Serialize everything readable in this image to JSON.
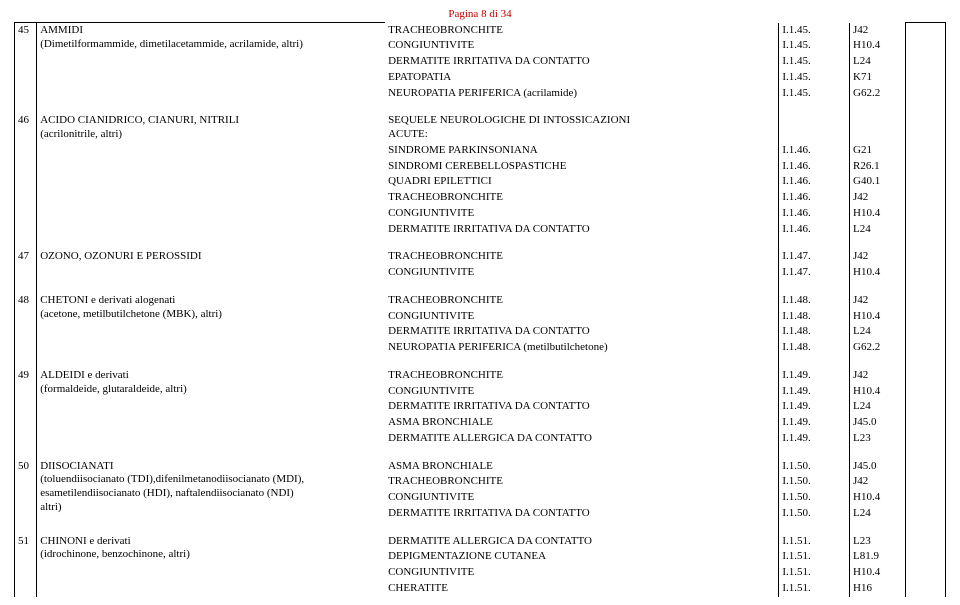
{
  "pageHeader": "Pagina 8 di 34",
  "groups": [
    {
      "num": "45",
      "left": "AMMIDI\n(Dimetilformammide, dimetilacetammide, acrilamide, altri)",
      "rows": [
        {
          "cond": "TRACHEOBRONCHITE",
          "c1": "I.1.45.",
          "c2": "J42"
        },
        {
          "cond": "CONGIUNTIVITE",
          "c1": "I.1.45.",
          "c2": "H10.4"
        },
        {
          "cond": "DERMATITE IRRITATIVA DA CONTATTO",
          "c1": "I.1.45.",
          "c2": "L24"
        },
        {
          "cond": "EPATOPATIA",
          "c1": "I.1.45.",
          "c2": "K71"
        },
        {
          "cond": "NEUROPATIA PERIFERICA (acrilamide)",
          "c1": "I.1.45.",
          "c2": "G62.2"
        }
      ]
    },
    {
      "num": "46",
      "left": "ACIDO CIANIDRICO, CIANURI, NITRILI\n(acrilonitrile, altri)",
      "rows": [
        {
          "cond": "SEQUELE NEUROLOGICHE DI INTOSSICAZIONI\nACUTE:",
          "c1": "",
          "c2": ""
        },
        {
          "cond": "SINDROME PARKINSONIANA",
          "c1": "I.1.46.",
          "c2": "G21"
        },
        {
          "cond": "SINDROMI CEREBELLOSPASTICHE",
          "c1": "I.1.46.",
          "c2": "R26.1"
        },
        {
          "cond": "QUADRI EPILETTICI",
          "c1": "I.1.46.",
          "c2": "G40.1"
        },
        {
          "cond": "TRACHEOBRONCHITE",
          "c1": "I.1.46.",
          "c2": "J42"
        },
        {
          "cond": "CONGIUNTIVITE",
          "c1": "I.1.46.",
          "c2": "H10.4"
        },
        {
          "cond": "DERMATITE IRRITATIVA DA CONTATTO",
          "c1": "I.1.46.",
          "c2": "L24"
        }
      ]
    },
    {
      "num": "47",
      "left": "OZONO, OZONURI E PEROSSIDI",
      "rows": [
        {
          "cond": "TRACHEOBRONCHITE",
          "c1": "I.1.47.",
          "c2": "J42"
        },
        {
          "cond": "CONGIUNTIVITE",
          "c1": "I.1.47.",
          "c2": "H10.4"
        }
      ]
    },
    {
      "num": "48",
      "left": "CHETONI e derivati alogenati\n(acetone, metilbutilchetone (MBK), altri)",
      "rows": [
        {
          "cond": "TRACHEOBRONCHITE",
          "c1": "I.1.48.",
          "c2": "J42"
        },
        {
          "cond": "CONGIUNTIVITE",
          "c1": "I.1.48.",
          "c2": "H10.4"
        },
        {
          "cond": "DERMATITE IRRITATIVA DA CONTATTO",
          "c1": "I.1.48.",
          "c2": "L24"
        },
        {
          "cond": "NEUROPATIA PERIFERICA (metilbutilchetone)",
          "c1": "I.1.48.",
          "c2": "G62.2"
        }
      ]
    },
    {
      "num": "49",
      "left": "ALDEIDI e derivati\n(formaldeide, glutaraldeide, altri)",
      "rows": [
        {
          "cond": "TRACHEOBRONCHITE",
          "c1": "I.1.49.",
          "c2": "J42"
        },
        {
          "cond": "CONGIUNTIVITE",
          "c1": "I.1.49.",
          "c2": "H10.4"
        },
        {
          "cond": "DERMATITE IRRITATIVA DA CONTATTO",
          "c1": "I.1.49.",
          "c2": "L24"
        },
        {
          "cond": "ASMA BRONCHIALE",
          "c1": "I.1.49.",
          "c2": "J45.0"
        },
        {
          "cond": "DERMATITE ALLERGICA DA CONTATTO",
          "c1": "I.1.49.",
          "c2": "L23"
        }
      ]
    },
    {
      "num": "50",
      "left": "DIISOCIANATI\n(toluendiisocianato (TDI),difenilmetanodiisocianato (MDI),\nesametilendiisocianato (HDI), naftalendiisocianato (NDI)\naltri)",
      "rows": [
        {
          "cond": "ASMA BRONCHIALE",
          "c1": "I.1.50.",
          "c2": "J45.0"
        },
        {
          "cond": "TRACHEOBRONCHITE",
          "c1": "I.1.50.",
          "c2": "J42"
        },
        {
          "cond": "CONGIUNTIVITE",
          "c1": "I.1.50.",
          "c2": "H10.4"
        },
        {
          "cond": "DERMATITE IRRITATIVA DA CONTATTO",
          "c1": "I.1.50.",
          "c2": "L24"
        }
      ]
    },
    {
      "num": "51",
      "left": "CHINONI e derivati\n(idrochinone, benzochinone, altri)",
      "rows": [
        {
          "cond": "DERMATITE ALLERGICA DA CONTATTO",
          "c1": "I.1.51.",
          "c2": "L23"
        },
        {
          "cond": "DEPIGMENTAZIONE CUTANEA",
          "c1": "I.1.51.",
          "c2": "L81.9"
        },
        {
          "cond": "CONGIUNTIVITE",
          "c1": "I.1.51.",
          "c2": "H10.4"
        },
        {
          "cond": "CHERATITE",
          "c1": "I.1.51.",
          "c2": "H16"
        }
      ]
    }
  ]
}
